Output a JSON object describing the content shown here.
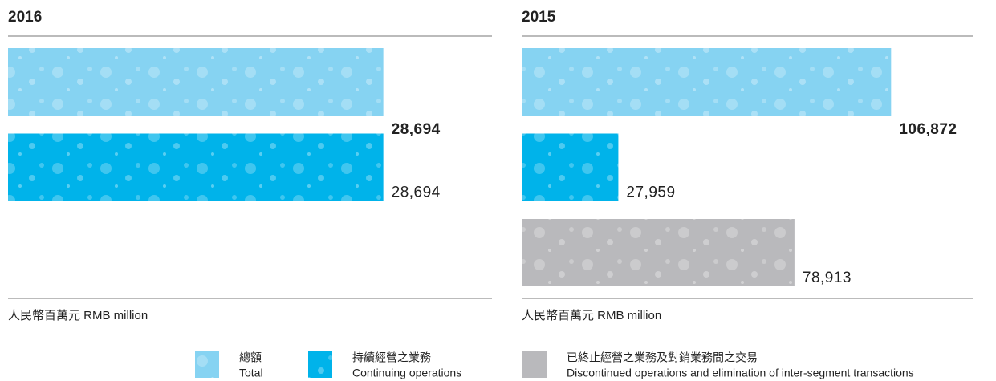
{
  "chart_data": [
    {
      "type": "bar",
      "title": "2016",
      "unit": "人民幣百萬元 RMB million",
      "values": [
        28694,
        28694
      ],
      "value_labels": [
        "28,694",
        "28,694"
      ],
      "colors": [
        "#86d3f2",
        "#00b3ea"
      ],
      "xlim": [
        0,
        37000
      ]
    },
    {
      "type": "bar",
      "title": "2015",
      "unit": "人民幣百萬元 RMB million",
      "values": [
        106872,
        27959,
        78913
      ],
      "value_labels": [
        "106,872",
        "27,959",
        "78,913"
      ],
      "colors": [
        "#86d3f2",
        "#00b3ea",
        "#b9b9bc"
      ],
      "xlim": [
        0,
        140000
      ]
    }
  ],
  "legend": [
    {
      "label_zh": "總額",
      "label_en": "Total",
      "color": "#86d3f2"
    },
    {
      "label_zh": "持續經營之業務",
      "label_en": "Continuing operations",
      "color": "#00b3ea"
    },
    {
      "label_zh": "已終止經營之業務及對銷業務間之交易",
      "label_en": "Discontinued operations and elimination of inter-segment transactions",
      "color": "#b9b9bc"
    }
  ]
}
